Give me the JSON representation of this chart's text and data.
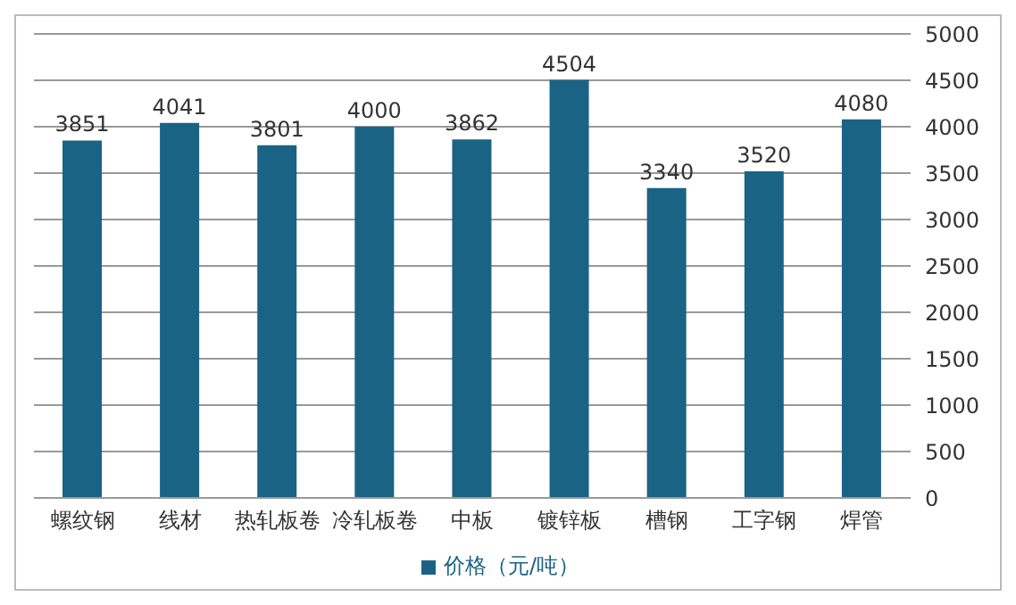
{
  "chart_data": {
    "type": "bar",
    "categories": [
      "螺纹钢",
      "线材",
      "热轧板卷",
      "冷轧板卷",
      "中板",
      "镀锌板",
      "槽钢",
      "工字钢",
      "焊管"
    ],
    "series": [
      {
        "name": "价格（元/吨）",
        "color": "#1a6384",
        "values": [
          3851,
          4041,
          3801,
          4000,
          3862,
          4504,
          3340,
          3520,
          4080
        ]
      }
    ],
    "ylim": [
      0,
      5000
    ],
    "yticks": [
      0,
      500,
      1000,
      1500,
      2000,
      2500,
      3000,
      3500,
      4000,
      4500,
      5000
    ],
    "grid": "y",
    "legend": "bottom",
    "data_labels": true
  }
}
